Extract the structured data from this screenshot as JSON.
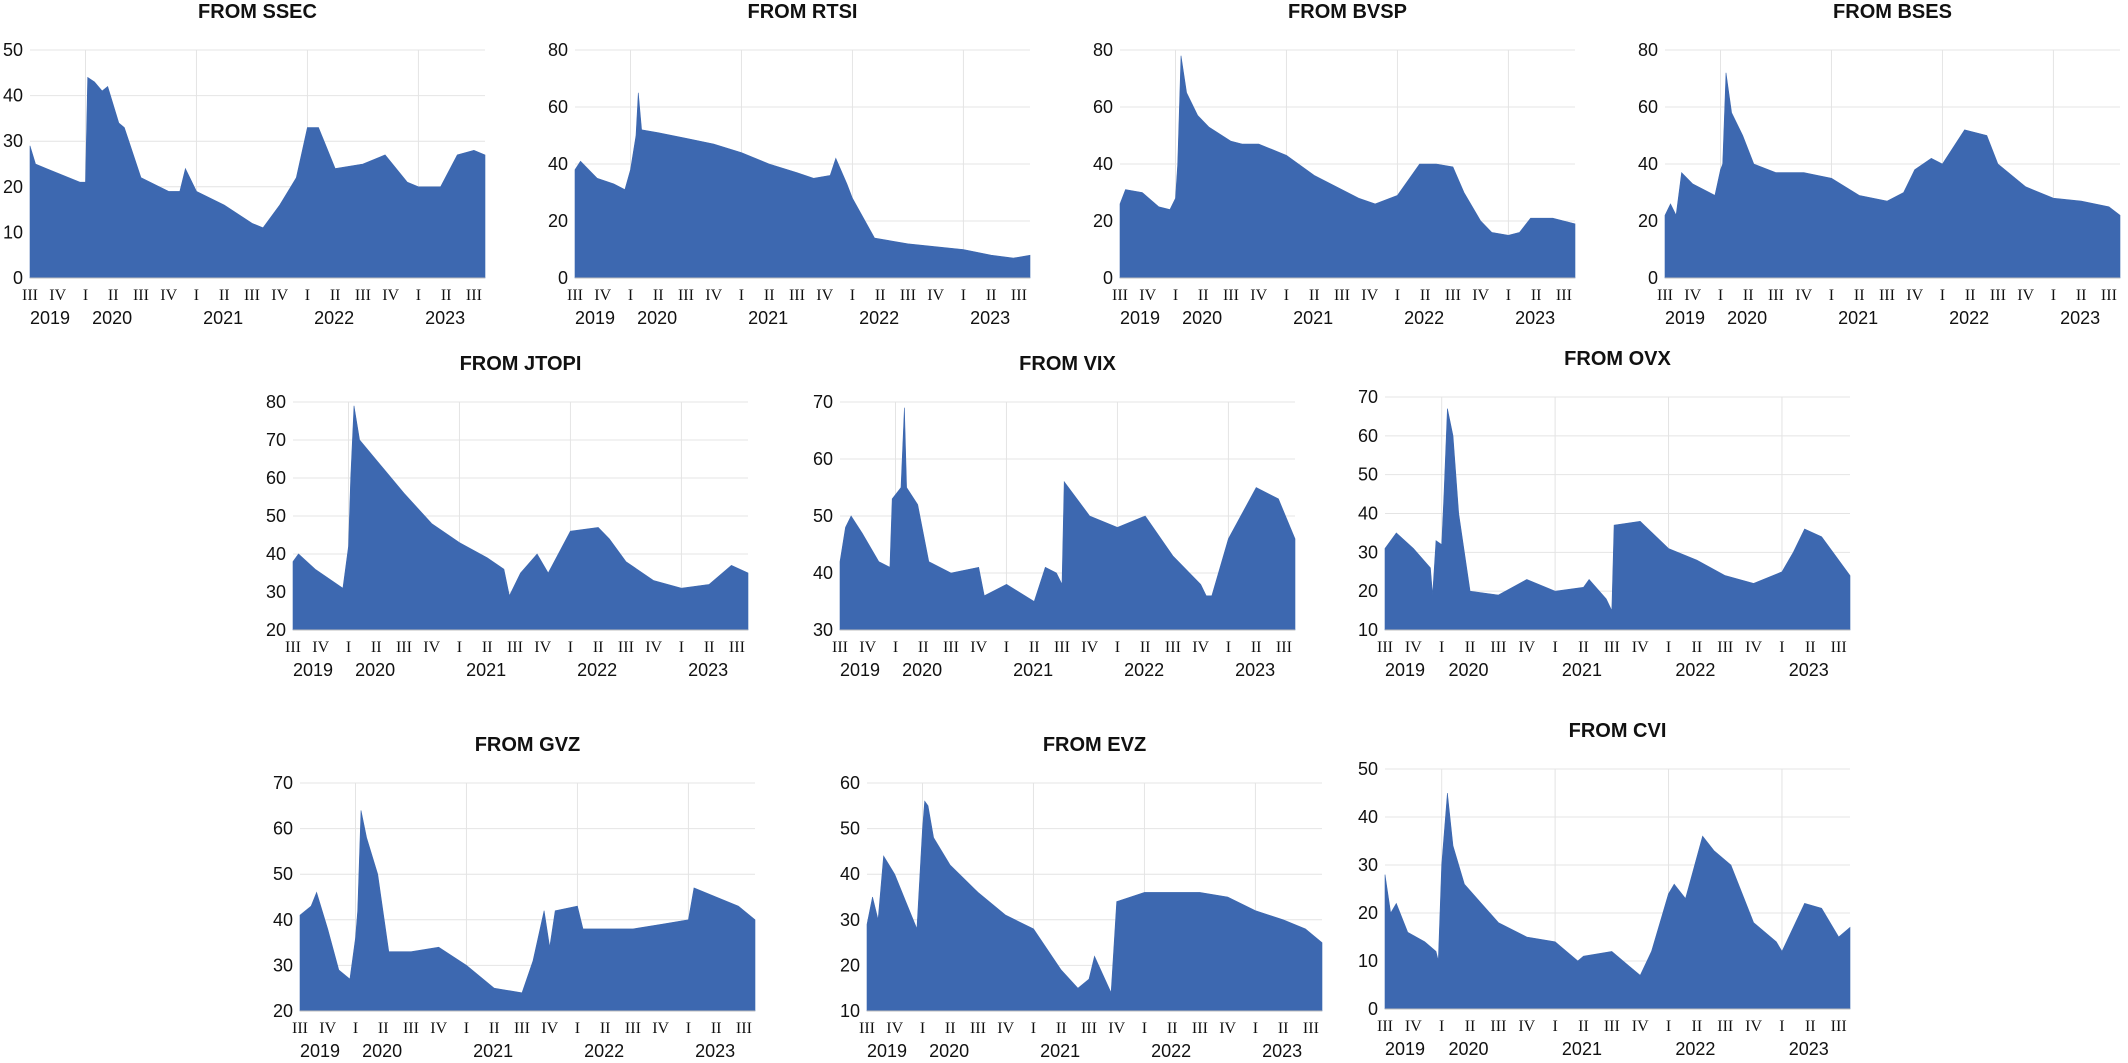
{
  "colors": {
    "area": "#3d68b0",
    "grid": "#e4e4e4",
    "text": "#111111"
  },
  "chart_data": [
    {
      "type": "area",
      "title": "FROM SSEC",
      "ylim": [
        0,
        50
      ],
      "yticks": [
        0,
        10,
        20,
        30,
        40,
        50
      ],
      "quarters": [
        "III",
        "IV",
        "I",
        "II",
        "III",
        "IV",
        "I",
        "II",
        "III",
        "IV",
        "I",
        "II",
        "III",
        "IV",
        "I",
        "II",
        "III"
      ],
      "years": [
        "2019",
        "2020",
        "2021",
        "2022",
        "2023"
      ],
      "grid": true,
      "x": [
        2019.5,
        2019.55,
        2019.65,
        2019.75,
        2019.85,
        2019.95,
        2020.0,
        2020.02,
        2020.08,
        2020.15,
        2020.2,
        2020.3,
        2020.35,
        2020.5,
        2020.75,
        2020.85,
        2020.9,
        2021.0,
        2021.25,
        2021.5,
        2021.6,
        2021.75,
        2021.85,
        2021.9,
        2022.0,
        2022.1,
        2022.15,
        2022.25,
        2022.5,
        2022.7,
        2022.9,
        2023.0,
        2023.2,
        2023.35,
        2023.5,
        2023.6
      ],
      "values": [
        29,
        25,
        24,
        23,
        22,
        21,
        21,
        44,
        43,
        41,
        42,
        34,
        33,
        22,
        19,
        19,
        24,
        19,
        16,
        12,
        11,
        16,
        20,
        22,
        33,
        33,
        30,
        24,
        25,
        27,
        21,
        20,
        20,
        27,
        28,
        27
      ]
    },
    {
      "type": "area",
      "title": "FROM RTSI",
      "ylim": [
        0,
        80
      ],
      "yticks": [
        0,
        20,
        40,
        60,
        80
      ],
      "quarters": [
        "III",
        "IV",
        "I",
        "II",
        "III",
        "IV",
        "I",
        "II",
        "III",
        "IV",
        "I",
        "II",
        "III",
        "IV",
        "I",
        "II",
        "III"
      ],
      "years": [
        "2019",
        "2020",
        "2021",
        "2022",
        "2023"
      ],
      "grid": true,
      "x": [
        2019.5,
        2019.55,
        2019.7,
        2019.85,
        2019.95,
        2020.0,
        2020.05,
        2020.07,
        2020.1,
        2020.25,
        2020.5,
        2020.75,
        2021.0,
        2021.25,
        2021.5,
        2021.65,
        2021.8,
        2021.85,
        2021.95,
        2022.0,
        2022.2,
        2022.5,
        2022.75,
        2023.0,
        2023.25,
        2023.45,
        2023.6
      ],
      "values": [
        38,
        41,
        35,
        33,
        31,
        38,
        50,
        65,
        52,
        51,
        49,
        47,
        44,
        40,
        37,
        35,
        36,
        42,
        33,
        28,
        14,
        12,
        11,
        10,
        8,
        7,
        8
      ]
    },
    {
      "type": "area",
      "title": "FROM BVSP",
      "ylim": [
        0,
        80
      ],
      "yticks": [
        0,
        20,
        40,
        60,
        80
      ],
      "quarters": [
        "III",
        "IV",
        "I",
        "II",
        "III",
        "IV",
        "I",
        "II",
        "III",
        "IV",
        "I",
        "II",
        "III",
        "IV",
        "I",
        "II",
        "III"
      ],
      "years": [
        "2019",
        "2020",
        "2021",
        "2022",
        "2023"
      ],
      "grid": true,
      "x": [
        2019.5,
        2019.55,
        2019.7,
        2019.85,
        2019.95,
        2020.0,
        2020.02,
        2020.05,
        2020.1,
        2020.2,
        2020.3,
        2020.5,
        2020.6,
        2020.75,
        2021.0,
        2021.25,
        2021.5,
        2021.65,
        2021.8,
        2022.0,
        2022.2,
        2022.35,
        2022.5,
        2022.6,
        2022.75,
        2022.85,
        2023.0,
        2023.1,
        2023.2,
        2023.4,
        2023.6
      ],
      "values": [
        26,
        31,
        30,
        25,
        24,
        28,
        40,
        78,
        65,
        57,
        53,
        48,
        47,
        47,
        43,
        36,
        31,
        28,
        26,
        29,
        40,
        40,
        39,
        30,
        20,
        16,
        15,
        16,
        21,
        21,
        19
      ]
    },
    {
      "type": "area",
      "title": "FROM BSES",
      "ylim": [
        0,
        80
      ],
      "yticks": [
        0,
        20,
        40,
        60,
        80
      ],
      "quarters": [
        "III",
        "IV",
        "I",
        "II",
        "III",
        "IV",
        "I",
        "II",
        "III",
        "IV",
        "I",
        "II",
        "III",
        "IV",
        "I",
        "II",
        "III"
      ],
      "years": [
        "2019",
        "2020",
        "2021",
        "2022",
        "2023"
      ],
      "grid": true,
      "x": [
        2019.5,
        2019.55,
        2019.6,
        2019.65,
        2019.75,
        2019.9,
        2019.95,
        2020.0,
        2020.02,
        2020.05,
        2020.1,
        2020.2,
        2020.3,
        2020.5,
        2020.75,
        2021.0,
        2021.25,
        2021.5,
        2021.65,
        2021.75,
        2021.9,
        2022.0,
        2022.2,
        2022.4,
        2022.5,
        2022.75,
        2023.0,
        2023.25,
        2023.5,
        2023.6
      ],
      "values": [
        22,
        26,
        22,
        37,
        33,
        30,
        29,
        38,
        40,
        72,
        58,
        50,
        40,
        37,
        37,
        35,
        29,
        27,
        30,
        38,
        42,
        40,
        52,
        50,
        40,
        32,
        28,
        27,
        25,
        22
      ]
    },
    {
      "type": "area",
      "title": "FROM JTOPI",
      "ylim": [
        20,
        80
      ],
      "yticks": [
        20,
        30,
        40,
        50,
        60,
        70,
        80
      ],
      "quarters": [
        "III",
        "IV",
        "I",
        "II",
        "III",
        "IV",
        "I",
        "II",
        "III",
        "IV",
        "I",
        "II",
        "III",
        "IV",
        "I",
        "II",
        "III"
      ],
      "years": [
        "2019",
        "2020",
        "2021",
        "2022",
        "2023"
      ],
      "grid": true,
      "x": [
        2019.5,
        2019.55,
        2019.7,
        2019.85,
        2019.95,
        2020.0,
        2020.02,
        2020.05,
        2020.1,
        2020.3,
        2020.5,
        2020.75,
        2021.0,
        2021.25,
        2021.4,
        2021.45,
        2021.55,
        2021.7,
        2021.8,
        2022.0,
        2022.25,
        2022.35,
        2022.5,
        2022.75,
        2023.0,
        2023.25,
        2023.45,
        2023.6
      ],
      "values": [
        38,
        40,
        36,
        33,
        31,
        42,
        60,
        79,
        70,
        63,
        56,
        48,
        43,
        39,
        36,
        29,
        35,
        40,
        35,
        46,
        47,
        44,
        38,
        33,
        31,
        32,
        37,
        35
      ]
    },
    {
      "type": "area",
      "title": "FROM VIX",
      "ylim": [
        30,
        70
      ],
      "yticks": [
        30,
        40,
        50,
        60,
        70
      ],
      "quarters": [
        "III",
        "IV",
        "I",
        "II",
        "III",
        "IV",
        "I",
        "II",
        "III",
        "IV",
        "I",
        "II",
        "III",
        "IV",
        "I",
        "II",
        "III"
      ],
      "years": [
        "2019",
        "2020",
        "2021",
        "2022",
        "2023"
      ],
      "grid": true,
      "x": [
        2019.5,
        2019.55,
        2019.6,
        2019.7,
        2019.85,
        2019.95,
        2019.97,
        2020.05,
        2020.08,
        2020.1,
        2020.2,
        2020.3,
        2020.5,
        2020.75,
        2020.8,
        2021.0,
        2021.25,
        2021.35,
        2021.45,
        2021.5,
        2021.52,
        2021.75,
        2022.0,
        2022.25,
        2022.5,
        2022.75,
        2022.8,
        2022.85,
        2023.0,
        2023.25,
        2023.45,
        2023.6
      ],
      "values": [
        42,
        48,
        50,
        47,
        42,
        41,
        53,
        55,
        69,
        55,
        52,
        42,
        40,
        41,
        36,
        38,
        35,
        41,
        40,
        38,
        56,
        50,
        48,
        50,
        43,
        38,
        36,
        36,
        46,
        55,
        53,
        46
      ]
    },
    {
      "type": "area",
      "title": "FROM OVX",
      "ylim": [
        10,
        70
      ],
      "yticks": [
        10,
        20,
        30,
        40,
        50,
        60,
        70
      ],
      "quarters": [
        "III",
        "IV",
        "I",
        "II",
        "III",
        "IV",
        "I",
        "II",
        "III",
        "IV",
        "I",
        "II",
        "III",
        "IV",
        "I",
        "II",
        "III"
      ],
      "years": [
        "2019",
        "2020",
        "2021",
        "2022",
        "2023"
      ],
      "grid": true,
      "x": [
        2019.5,
        2019.6,
        2019.75,
        2019.9,
        2019.92,
        2019.95,
        2020.0,
        2020.02,
        2020.05,
        2020.1,
        2020.15,
        2020.25,
        2020.5,
        2020.75,
        2021.0,
        2021.25,
        2021.3,
        2021.45,
        2021.5,
        2021.52,
        2021.75,
        2022.0,
        2022.25,
        2022.5,
        2022.75,
        2023.0,
        2023.1,
        2023.2,
        2023.35,
        2023.45,
        2023.6
      ],
      "values": [
        31,
        35,
        31,
        26,
        19,
        33,
        32,
        45,
        67,
        60,
        40,
        20,
        19,
        23,
        20,
        21,
        23,
        18,
        15,
        37,
        38,
        31,
        28,
        24,
        22,
        25,
        30,
        36,
        34,
        30,
        24
      ]
    },
    {
      "type": "area",
      "title": "FROM GVZ",
      "ylim": [
        20,
        70
      ],
      "yticks": [
        20,
        30,
        40,
        50,
        60,
        70
      ],
      "quarters": [
        "III",
        "IV",
        "I",
        "II",
        "III",
        "IV",
        "I",
        "II",
        "III",
        "IV",
        "I",
        "II",
        "III",
        "IV",
        "I",
        "II",
        "III"
      ],
      "years": [
        "2019",
        "2020",
        "2021",
        "2022",
        "2023"
      ],
      "grid": true,
      "x": [
        2019.5,
        2019.6,
        2019.65,
        2019.75,
        2019.85,
        2019.95,
        2020.0,
        2020.02,
        2020.05,
        2020.1,
        2020.2,
        2020.3,
        2020.5,
        2020.75,
        2021.0,
        2021.25,
        2021.5,
        2021.6,
        2021.7,
        2021.75,
        2021.8,
        2022.0,
        2022.05,
        2022.25,
        2022.5,
        2022.75,
        2023.0,
        2023.05,
        2023.25,
        2023.45,
        2023.6
      ],
      "values": [
        41,
        43,
        46,
        38,
        29,
        27,
        36,
        42,
        64,
        58,
        50,
        33,
        33,
        34,
        30,
        25,
        24,
        31,
        42,
        34,
        42,
        43,
        38,
        38,
        38,
        39,
        40,
        47,
        45,
        43,
        40
      ]
    },
    {
      "type": "area",
      "title": "FROM EVZ",
      "ylim": [
        10,
        60
      ],
      "yticks": [
        10,
        20,
        30,
        40,
        50,
        60
      ],
      "quarters": [
        "III",
        "IV",
        "I",
        "II",
        "III",
        "IV",
        "I",
        "II",
        "III",
        "IV",
        "I",
        "II",
        "III",
        "IV",
        "I",
        "II",
        "III"
      ],
      "years": [
        "2019",
        "2020",
        "2021",
        "2022",
        "2023"
      ],
      "grid": true,
      "x": [
        2019.5,
        2019.55,
        2019.6,
        2019.65,
        2019.75,
        2019.85,
        2019.95,
        2020.0,
        2020.02,
        2020.05,
        2020.1,
        2020.25,
        2020.5,
        2020.75,
        2021.0,
        2021.25,
        2021.4,
        2021.5,
        2021.55,
        2021.7,
        2021.75,
        2022.0,
        2022.25,
        2022.5,
        2022.75,
        2023.0,
        2023.25,
        2023.45,
        2023.6
      ],
      "values": [
        29,
        35,
        30,
        44,
        40,
        34,
        28,
        50,
        56,
        55,
        48,
        42,
        36,
        31,
        28,
        19,
        15,
        17,
        22,
        14,
        34,
        36,
        36,
        36,
        35,
        32,
        30,
        28,
        25
      ]
    },
    {
      "type": "area",
      "title": "FROM CVI",
      "ylim": [
        0,
        50
      ],
      "yticks": [
        0,
        10,
        20,
        30,
        40,
        50
      ],
      "quarters": [
        "III",
        "IV",
        "I",
        "II",
        "III",
        "IV",
        "I",
        "II",
        "III",
        "IV",
        "I",
        "II",
        "III",
        "IV",
        "I",
        "II",
        "III"
      ],
      "years": [
        "2019",
        "2020",
        "2021",
        "2022",
        "2023"
      ],
      "grid": true,
      "x": [
        2019.5,
        2019.55,
        2019.6,
        2019.7,
        2019.85,
        2019.95,
        2019.97,
        2020.0,
        2020.05,
        2020.1,
        2020.2,
        2020.35,
        2020.5,
        2020.75,
        2021.0,
        2021.2,
        2021.25,
        2021.5,
        2021.65,
        2021.75,
        2021.85,
        2022.0,
        2022.05,
        2022.15,
        2022.3,
        2022.4,
        2022.55,
        2022.75,
        2022.95,
        2023.0,
        2023.2,
        2023.35,
        2023.5,
        2023.6
      ],
      "values": [
        28,
        20,
        22,
        16,
        14,
        12,
        10,
        30,
        45,
        34,
        26,
        22,
        18,
        15,
        14,
        10,
        11,
        12,
        9,
        7,
        12,
        24,
        26,
        23,
        36,
        33,
        30,
        18,
        14,
        12,
        22,
        21,
        15,
        17
      ]
    }
  ]
}
